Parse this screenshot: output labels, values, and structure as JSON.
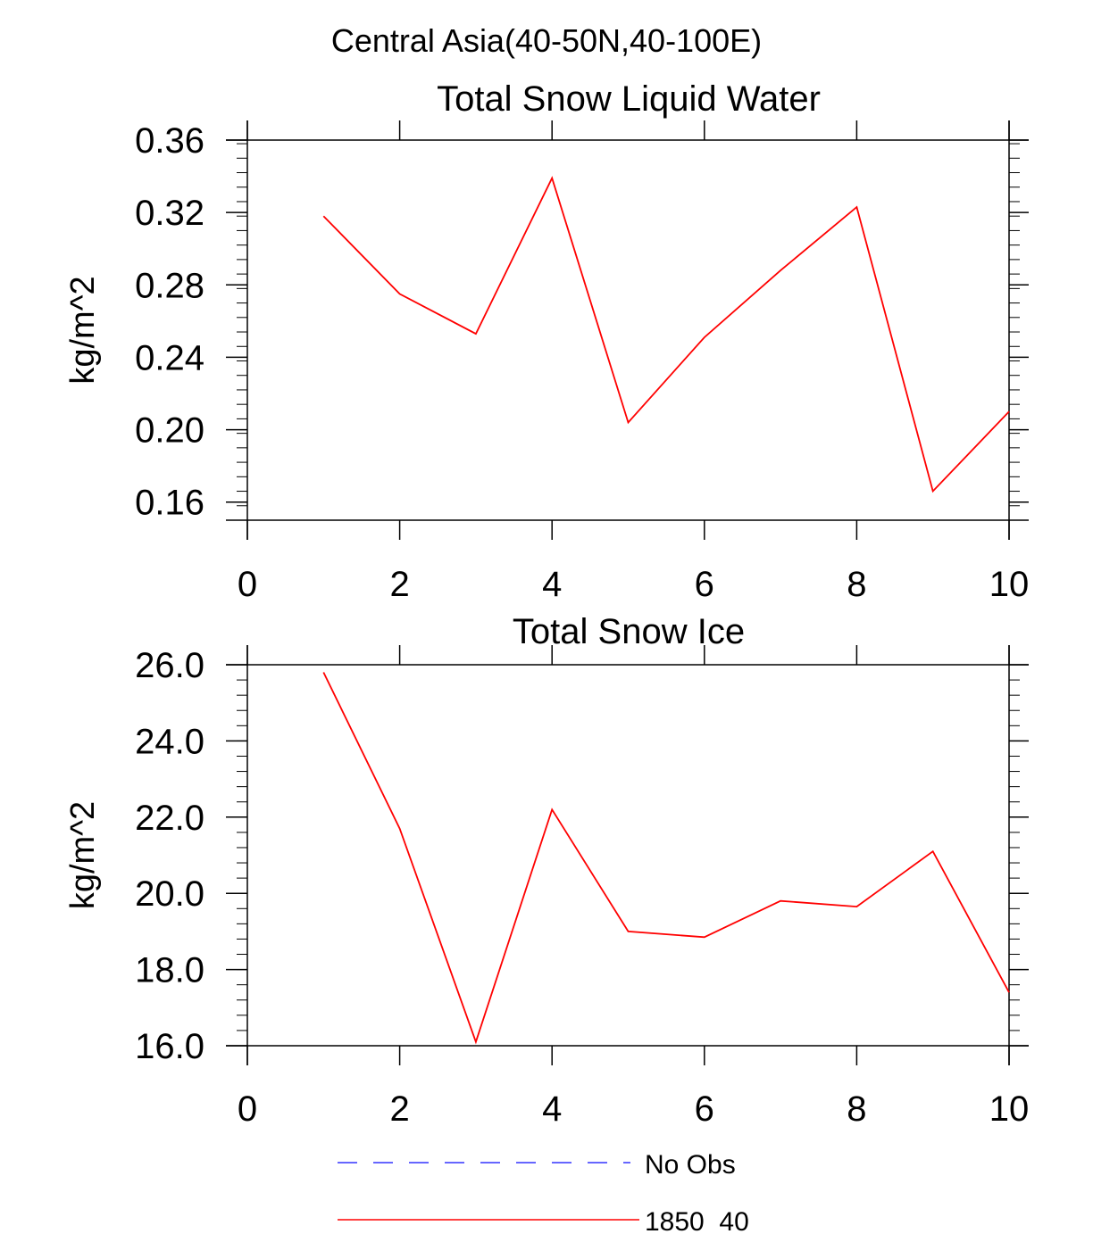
{
  "figure_title": "Central Asia(40-50N,40-100E)",
  "legend": [
    {
      "label": "No Obs",
      "color": "#3333ff",
      "style": "dashed"
    },
    {
      "label": "1850_40",
      "color": "#ff0000",
      "style": "solid"
    }
  ],
  "chart_data": [
    {
      "type": "line",
      "title": "Total Snow Liquid Water",
      "xlabel": "",
      "ylabel": "kg/m^2",
      "xlim": [
        0,
        10
      ],
      "ylim": [
        0.15,
        0.36
      ],
      "xticks": [
        0,
        2,
        4,
        6,
        8,
        10
      ],
      "xtick_labels": [
        "0",
        "2",
        "4",
        "6",
        "8",
        "10"
      ],
      "yticks": [
        0.16,
        0.2,
        0.24,
        0.28,
        0.32,
        0.36
      ],
      "ytick_labels": [
        "0.16",
        "0.20",
        "0.24",
        "0.28",
        "0.32",
        "0.36"
      ],
      "series": [
        {
          "name": "1850_40",
          "color": "#ff0000",
          "x": [
            1,
            2,
            3,
            4,
            5,
            6,
            7,
            8,
            9,
            10
          ],
          "values": [
            0.318,
            0.275,
            0.253,
            0.339,
            0.204,
            0.251,
            0.288,
            0.323,
            0.166,
            0.21
          ]
        }
      ]
    },
    {
      "type": "line",
      "title": "Total Snow Ice",
      "xlabel": "",
      "ylabel": "kg/m^2",
      "xlim": [
        0,
        10
      ],
      "ylim": [
        16.0,
        26.0
      ],
      "xticks": [
        0,
        2,
        4,
        6,
        8,
        10
      ],
      "xtick_labels": [
        "0",
        "2",
        "4",
        "6",
        "8",
        "10"
      ],
      "yticks": [
        16.0,
        18.0,
        20.0,
        22.0,
        24.0,
        26.0
      ],
      "ytick_labels": [
        "16.0",
        "18.0",
        "20.0",
        "22.0",
        "24.0",
        "26.0"
      ],
      "series": [
        {
          "name": "1850_40",
          "color": "#ff0000",
          "x": [
            1,
            2,
            3,
            4,
            5,
            6,
            7,
            8,
            9,
            10
          ],
          "values": [
            25.8,
            21.7,
            16.1,
            22.2,
            19.0,
            18.85,
            19.8,
            19.65,
            21.1,
            17.4
          ]
        }
      ]
    }
  ]
}
